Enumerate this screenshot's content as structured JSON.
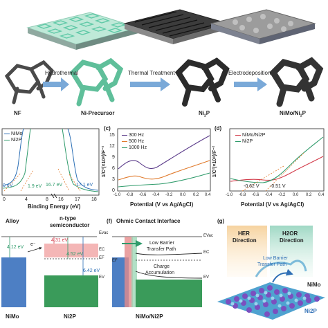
{
  "top": {
    "labels": [
      "NF",
      "Ni-Precursor",
      "Ni",
      "NiMo/Ni"
    ],
    "ni2p_sub": "2",
    "ni2p_p": "P",
    "steps": [
      "Hydrothermal",
      "Thermal Treatment",
      "Electrodeposition"
    ]
  },
  "panel_b": {
    "legend": [
      "NiMo",
      "Ni2P"
    ],
    "xlabel": "Binding Energy (eV)",
    "ticks": [
      "0",
      "4",
      "8",
      "16",
      "17",
      "18"
    ],
    "annotations": [
      "0 eV",
      "1.9 eV",
      "16.7 eV",
      "17.1 eV"
    ]
  },
  "panel_c": {
    "letter": "(c)",
    "legend": [
      "300 Hz",
      "500 Hz",
      "1000 Hz"
    ],
    "xlabel": "Potential (V vs Ag/AgCl)",
    "ylabel": "1/C²(×10⁸)/F⁻²",
    "xticks": [
      "-1.0",
      "-0.8",
      "-0.6",
      "-0.4",
      "-0.2",
      "0.0",
      "0.2",
      "0.4"
    ],
    "yticks": [
      "0",
      "3",
      "6",
      "9",
      "12",
      "15"
    ]
  },
  "panel_d": {
    "letter": "(d)",
    "legend": [
      "NiMo/Ni2P",
      "Ni2P"
    ],
    "xlabel": "Potential (V vs Ag/AgCl)",
    "ylabel": "1/C²(×10⁸)/F⁻²",
    "xticks": [
      "-1.0",
      "-0.8",
      "-0.6",
      "-0.4",
      "-0.2",
      "0.0",
      "0.2",
      "0.4"
    ],
    "annotations": [
      "-0.62 V",
      "-0.51 V"
    ]
  },
  "panel_e": {
    "headers": [
      "Alloy",
      "n-type",
      "semiconductor"
    ],
    "energies": [
      "4.12 eV",
      "4.31 eV",
      "4.52 eV",
      "6.42 eV"
    ],
    "levels": [
      "Evac",
      "EC",
      "EF",
      "EV"
    ],
    "electron": "e⁻",
    "bottom": [
      "NiMo",
      "Ni2P"
    ]
  },
  "panel_f": {
    "letter": "(f)",
    "title": "Ohmic Contact Interface",
    "labels": [
      "Low Barrier",
      "Transfer Path",
      "Charge",
      "Accumulation"
    ],
    "levels": [
      "EVac",
      "EC",
      "EF",
      "EV"
    ],
    "bottom": "NiMo/Ni2P"
  },
  "panel_g": {
    "letter": "(g)",
    "labels": [
      "HER",
      "Direction",
      "H2OR",
      "Direction",
      "Low Barrier",
      "Transfer Path",
      "NiMo",
      "Ni2P"
    ]
  },
  "colors": {
    "green": "#2f9b6b",
    "blue": "#2c6fb5",
    "purple": "#5b3b8a",
    "orange": "#e07a2c",
    "red": "#d23b4a"
  }
}
